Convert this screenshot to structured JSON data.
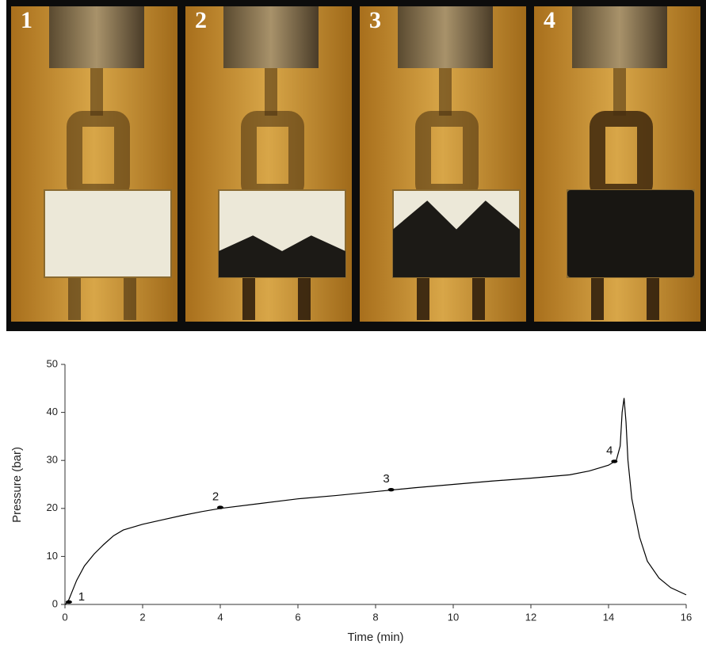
{
  "chart_data": {
    "type": "line",
    "photo_labels": [
      "1",
      "2",
      "3",
      "4"
    ],
    "x_label": "Time (min)",
    "y_label": "Pressure (bar)",
    "x": [
      0,
      0.05,
      0.1,
      0.2,
      0.3,
      0.5,
      0.75,
      1,
      1.25,
      1.5,
      2,
      2.5,
      3,
      3.5,
      4,
      5,
      6,
      7,
      8,
      9,
      10,
      11,
      12,
      13,
      13.5,
      14,
      14.2,
      14.3,
      14.35,
      14.4,
      14.45,
      14.5,
      14.6,
      14.8,
      15,
      15.3,
      15.6,
      16
    ],
    "values": [
      0,
      0.3,
      1,
      3,
      5,
      8,
      10.5,
      12.5,
      14.3,
      15.5,
      16.7,
      17.6,
      18.5,
      19.3,
      20,
      21,
      22,
      22.7,
      23.5,
      24.3,
      25,
      25.7,
      26.3,
      27,
      27.8,
      29,
      30,
      33,
      40,
      43,
      38,
      30,
      22,
      14,
      9,
      5.5,
      3.5,
      2
    ],
    "color": "#000000",
    "annotations": [
      {
        "label": "1",
        "x": 0.1,
        "y": 0.5
      },
      {
        "label": "2",
        "x": 4,
        "y": 20.2
      },
      {
        "label": "3",
        "x": 8.4,
        "y": 23.9
      },
      {
        "label": "4",
        "x": 14.15,
        "y": 29.8
      }
    ],
    "xlim": [
      0,
      16
    ],
    "ylim": [
      0,
      50
    ],
    "xticks": [
      0,
      2,
      4,
      6,
      8,
      10,
      12,
      14,
      16
    ],
    "yticks": [
      0,
      10,
      20,
      30,
      40,
      50
    ]
  }
}
